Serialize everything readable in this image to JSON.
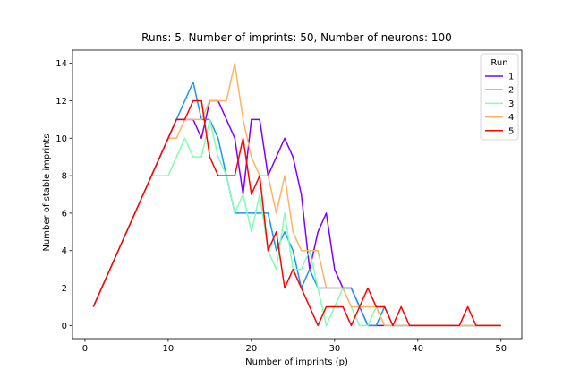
{
  "chart_data": {
    "type": "line",
    "title": "Runs: 5, Number of imprints: 50, Number of neurons: 100",
    "xlabel": "Number of imprints (p)",
    "ylabel": "Number of stable imprints",
    "xlim": [
      -1.5,
      52.5
    ],
    "ylim": [
      -0.7,
      14.7
    ],
    "xticks": [
      0,
      10,
      20,
      30,
      40,
      50
    ],
    "yticks": [
      0,
      2,
      4,
      6,
      8,
      10,
      12,
      14
    ],
    "legend_title": "Run",
    "legend_position": "top-right",
    "series": [
      {
        "name": "1",
        "color": "#8000ff",
        "x": [
          1,
          2,
          3,
          4,
          5,
          6,
          7,
          8,
          9,
          10,
          11,
          12,
          13,
          14,
          15,
          16,
          17,
          18,
          19,
          20,
          21,
          22,
          23,
          24,
          25,
          26,
          27,
          28,
          29,
          30,
          31,
          32,
          33,
          34,
          35,
          36,
          37,
          38,
          39,
          40,
          41,
          42,
          43,
          44,
          45,
          46,
          47,
          48,
          49,
          50
        ],
        "y": [
          1,
          2,
          3,
          4,
          5,
          6,
          7,
          8,
          9,
          10,
          11,
          11,
          11,
          10,
          12,
          12,
          11,
          10,
          7,
          11,
          11,
          8,
          9,
          10,
          9,
          7,
          3,
          5,
          6,
          3,
          2,
          2,
          1,
          0,
          0,
          0,
          0,
          0,
          0,
          0,
          0,
          0,
          0,
          0,
          0,
          0,
          0,
          0,
          0,
          0
        ]
      },
      {
        "name": "2",
        "color": "#1996f3",
        "x": [
          1,
          2,
          3,
          4,
          5,
          6,
          7,
          8,
          9,
          10,
          11,
          12,
          13,
          14,
          15,
          16,
          17,
          18,
          19,
          20,
          21,
          22,
          23,
          24,
          25,
          26,
          27,
          28,
          29,
          30,
          31,
          32,
          33,
          34,
          35,
          36,
          37,
          38,
          39,
          40,
          41,
          42,
          43,
          44,
          45,
          46,
          47,
          48,
          49,
          50
        ],
        "y": [
          1,
          2,
          3,
          4,
          5,
          6,
          7,
          8,
          9,
          10,
          11,
          12,
          13,
          11,
          11,
          10,
          8,
          6,
          6,
          6,
          6,
          6,
          4,
          5,
          4,
          2,
          3,
          2,
          2,
          2,
          2,
          2,
          1,
          0,
          0,
          1,
          0,
          0,
          0,
          0,
          0,
          0,
          0,
          0,
          0,
          0,
          0,
          0,
          0,
          0
        ]
      },
      {
        "name": "3",
        "color": "#80ffb4",
        "x": [
          1,
          2,
          3,
          4,
          5,
          6,
          7,
          8,
          9,
          10,
          11,
          12,
          13,
          14,
          15,
          16,
          17,
          18,
          19,
          20,
          21,
          22,
          23,
          24,
          25,
          26,
          27,
          28,
          29,
          30,
          31,
          32,
          33,
          34,
          35,
          36,
          37,
          38,
          39,
          40,
          41,
          42,
          43,
          44,
          45,
          46,
          47,
          48,
          49,
          50
        ],
        "y": [
          1,
          2,
          3,
          4,
          5,
          6,
          7,
          8,
          8,
          8,
          9,
          10,
          9,
          9,
          11,
          9,
          8,
          6,
          7,
          5,
          7,
          4,
          3,
          6,
          3,
          3,
          4,
          2,
          0,
          1,
          2,
          1,
          0,
          0,
          1,
          0,
          0,
          0,
          0,
          0,
          0,
          0,
          0,
          0,
          0,
          0,
          0,
          0,
          0,
          0
        ]
      },
      {
        "name": "4",
        "color": "#ffb360",
        "x": [
          1,
          2,
          3,
          4,
          5,
          6,
          7,
          8,
          9,
          10,
          11,
          12,
          13,
          14,
          15,
          16,
          17,
          18,
          19,
          20,
          21,
          22,
          23,
          24,
          25,
          26,
          27,
          28,
          29,
          30,
          31,
          32,
          33,
          34,
          35,
          36,
          37,
          38,
          39,
          40,
          41,
          42,
          43,
          44,
          45,
          46,
          47,
          48,
          49,
          50
        ],
        "y": [
          1,
          2,
          3,
          4,
          5,
          6,
          7,
          8,
          9,
          10,
          10,
          11,
          11,
          11,
          12,
          12,
          12,
          14,
          11,
          9,
          8,
          8,
          6,
          8,
          5,
          4,
          4,
          4,
          2,
          2,
          2,
          1,
          1,
          1,
          1,
          0,
          0,
          0,
          0,
          0,
          0,
          0,
          0,
          0,
          0,
          0,
          0,
          0,
          0,
          0
        ]
      },
      {
        "name": "5",
        "color": "#ff0000",
        "x": [
          1,
          2,
          3,
          4,
          5,
          6,
          7,
          8,
          9,
          10,
          11,
          12,
          13,
          14,
          15,
          16,
          17,
          18,
          19,
          20,
          21,
          22,
          23,
          24,
          25,
          26,
          27,
          28,
          29,
          30,
          31,
          32,
          33,
          34,
          35,
          36,
          37,
          38,
          39,
          40,
          41,
          42,
          43,
          44,
          45,
          46,
          47,
          48,
          49,
          50
        ],
        "y": [
          1,
          2,
          3,
          4,
          5,
          6,
          7,
          8,
          9,
          10,
          11,
          11,
          12,
          12,
          9,
          8,
          8,
          8,
          10,
          7,
          8,
          4,
          5,
          2,
          3,
          2,
          1,
          0,
          1,
          1,
          1,
          0,
          1,
          2,
          1,
          1,
          0,
          1,
          0,
          0,
          0,
          0,
          0,
          0,
          0,
          1,
          0,
          0,
          0,
          0
        ]
      }
    ]
  }
}
